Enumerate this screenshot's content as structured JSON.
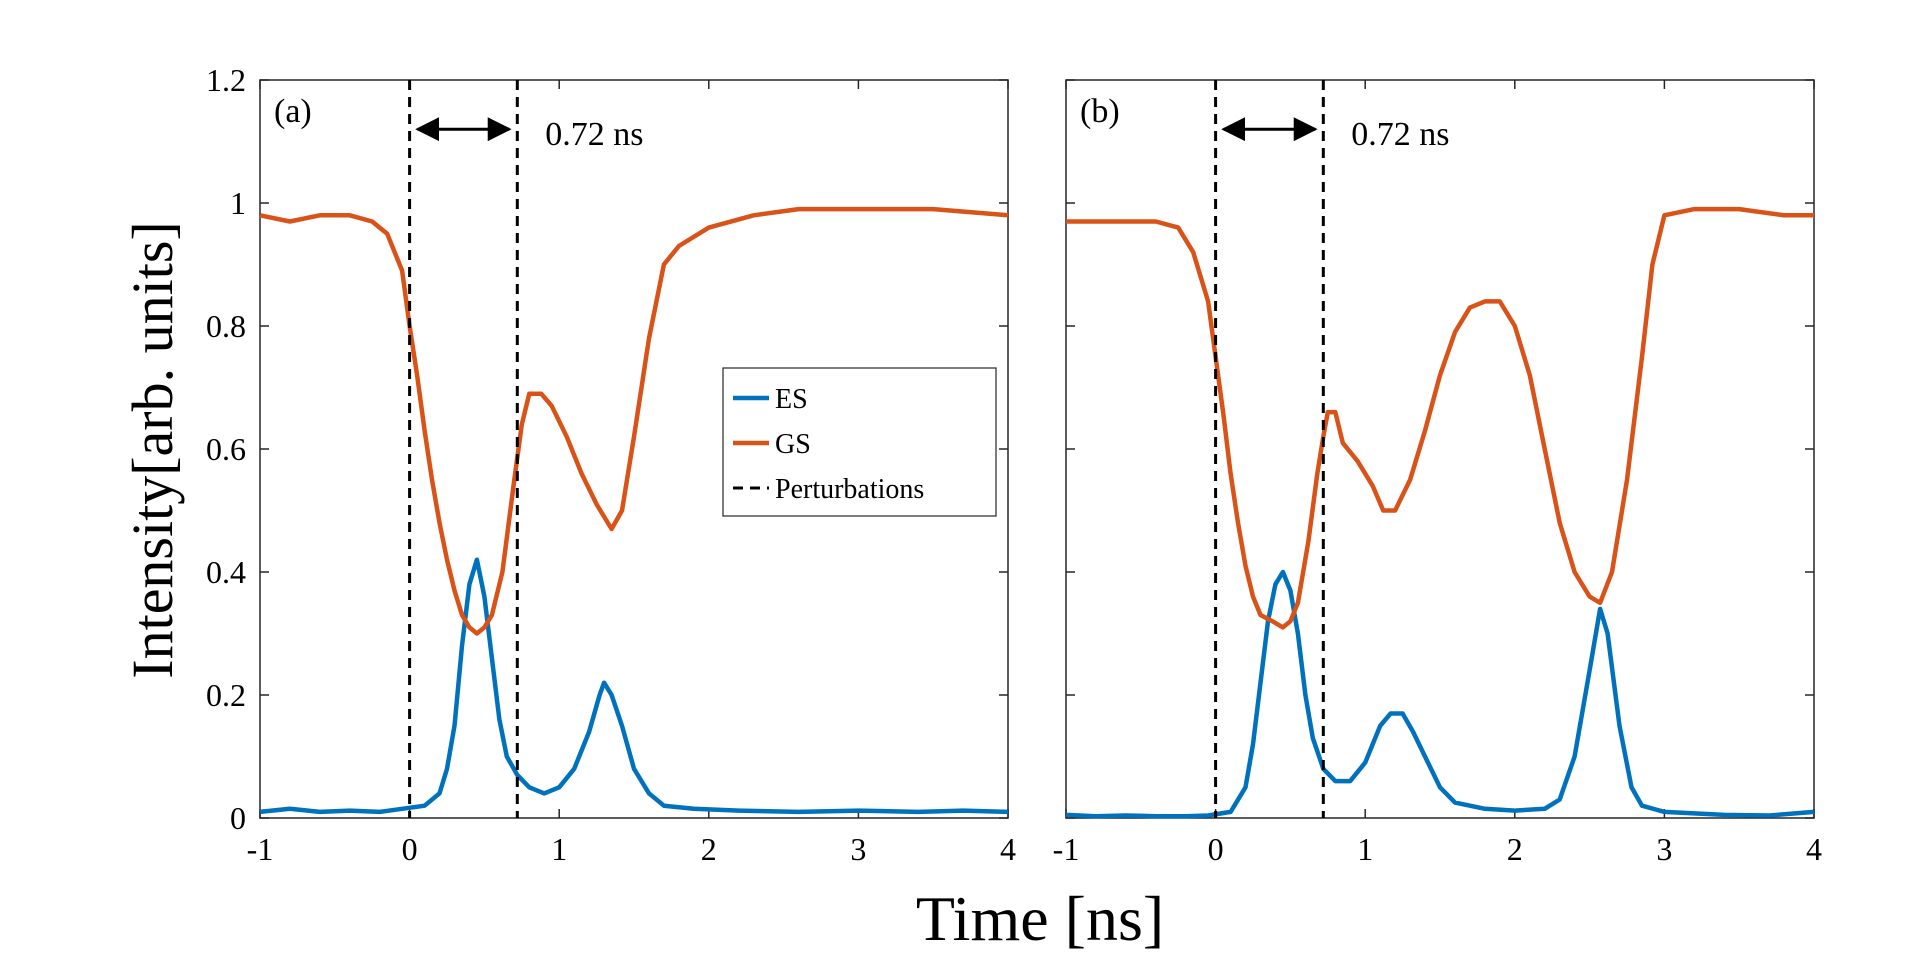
{
  "chart_data": [
    {
      "type": "line",
      "panel_label": "(a)",
      "xlabel": "Time [ns]",
      "ylabel": "Intensity[arb. units]",
      "xlim": [
        -1,
        4
      ],
      "ylim": [
        0,
        1.2
      ],
      "xticks": [
        -1,
        0,
        1,
        2,
        3,
        4
      ],
      "yticks": [
        0,
        0.2,
        0.4,
        0.6,
        0.8,
        1,
        1.2
      ],
      "ytick_labels": [
        "0",
        "0.2",
        "0.4",
        "0.6",
        "0.8",
        "1",
        "1.2"
      ],
      "xtick_labels": [
        "-1",
        "0",
        "1",
        "2",
        "3",
        "4"
      ],
      "perturbations": [
        0,
        0.72
      ],
      "annotation": "0.72 ns",
      "legend": [
        "ES",
        "GS",
        "Perturbations"
      ],
      "series": [
        {
          "name": "ES",
          "color": "#0072BD",
          "points": [
            [
              -1,
              0.01
            ],
            [
              -0.8,
              0.015
            ],
            [
              -0.6,
              0.01
            ],
            [
              -0.4,
              0.012
            ],
            [
              -0.2,
              0.01
            ],
            [
              -0.05,
              0.015
            ],
            [
              0.1,
              0.02
            ],
            [
              0.2,
              0.04
            ],
            [
              0.25,
              0.08
            ],
            [
              0.3,
              0.15
            ],
            [
              0.35,
              0.28
            ],
            [
              0.4,
              0.38
            ],
            [
              0.45,
              0.42
            ],
            [
              0.5,
              0.36
            ],
            [
              0.55,
              0.26
            ],
            [
              0.6,
              0.16
            ],
            [
              0.65,
              0.1
            ],
            [
              0.72,
              0.07
            ],
            [
              0.8,
              0.05
            ],
            [
              0.9,
              0.04
            ],
            [
              1.0,
              0.05
            ],
            [
              1.1,
              0.08
            ],
            [
              1.2,
              0.14
            ],
            [
              1.27,
              0.2
            ],
            [
              1.3,
              0.22
            ],
            [
              1.35,
              0.2
            ],
            [
              1.42,
              0.15
            ],
            [
              1.5,
              0.08
            ],
            [
              1.6,
              0.04
            ],
            [
              1.7,
              0.02
            ],
            [
              1.9,
              0.015
            ],
            [
              2.2,
              0.012
            ],
            [
              2.6,
              0.01
            ],
            [
              3.0,
              0.012
            ],
            [
              3.4,
              0.01
            ],
            [
              3.7,
              0.012
            ],
            [
              4.0,
              0.01
            ]
          ]
        },
        {
          "name": "GS",
          "color": "#D95319",
          "points": [
            [
              -1,
              0.98
            ],
            [
              -0.8,
              0.97
            ],
            [
              -0.6,
              0.98
            ],
            [
              -0.4,
              0.98
            ],
            [
              -0.25,
              0.97
            ],
            [
              -0.15,
              0.95
            ],
            [
              -0.05,
              0.89
            ],
            [
              0.0,
              0.8
            ],
            [
              0.05,
              0.72
            ],
            [
              0.1,
              0.63
            ],
            [
              0.15,
              0.55
            ],
            [
              0.2,
              0.48
            ],
            [
              0.25,
              0.42
            ],
            [
              0.3,
              0.37
            ],
            [
              0.35,
              0.33
            ],
            [
              0.4,
              0.31
            ],
            [
              0.45,
              0.3
            ],
            [
              0.5,
              0.31
            ],
            [
              0.55,
              0.33
            ],
            [
              0.62,
              0.4
            ],
            [
              0.7,
              0.55
            ],
            [
              0.75,
              0.64
            ],
            [
              0.8,
              0.69
            ],
            [
              0.88,
              0.69
            ],
            [
              0.95,
              0.67
            ],
            [
              1.05,
              0.62
            ],
            [
              1.15,
              0.56
            ],
            [
              1.25,
              0.51
            ],
            [
              1.35,
              0.47
            ],
            [
              1.42,
              0.5
            ],
            [
              1.5,
              0.62
            ],
            [
              1.6,
              0.78
            ],
            [
              1.7,
              0.9
            ],
            [
              1.8,
              0.93
            ],
            [
              2.0,
              0.96
            ],
            [
              2.3,
              0.98
            ],
            [
              2.6,
              0.99
            ],
            [
              3.0,
              0.99
            ],
            [
              3.5,
              0.99
            ],
            [
              4.0,
              0.98
            ]
          ]
        }
      ]
    },
    {
      "type": "line",
      "panel_label": "(b)",
      "xlabel": "Time [ns]",
      "ylabel": "",
      "xlim": [
        -1,
        4
      ],
      "ylim": [
        0,
        1.2
      ],
      "xticks": [
        -1,
        0,
        1,
        2,
        3,
        4
      ],
      "yticks": [
        0,
        0.2,
        0.4,
        0.6,
        0.8,
        1,
        1.2
      ],
      "xtick_labels": [
        "-1",
        "0",
        "1",
        "2",
        "3",
        "4"
      ],
      "perturbations": [
        0,
        0.72
      ],
      "annotation": "0.72 ns",
      "series": [
        {
          "name": "ES",
          "color": "#0072BD",
          "points": [
            [
              -1,
              0.005
            ],
            [
              -0.8,
              0.003
            ],
            [
              -0.6,
              0.004
            ],
            [
              -0.4,
              0.003
            ],
            [
              -0.2,
              0.003
            ],
            [
              -0.05,
              0.004
            ],
            [
              0.1,
              0.01
            ],
            [
              0.2,
              0.05
            ],
            [
              0.25,
              0.12
            ],
            [
              0.3,
              0.22
            ],
            [
              0.35,
              0.32
            ],
            [
              0.4,
              0.38
            ],
            [
              0.45,
              0.4
            ],
            [
              0.5,
              0.37
            ],
            [
              0.55,
              0.3
            ],
            [
              0.6,
              0.2
            ],
            [
              0.65,
              0.13
            ],
            [
              0.72,
              0.08
            ],
            [
              0.8,
              0.06
            ],
            [
              0.9,
              0.06
            ],
            [
              1.0,
              0.09
            ],
            [
              1.1,
              0.15
            ],
            [
              1.17,
              0.17
            ],
            [
              1.25,
              0.17
            ],
            [
              1.32,
              0.14
            ],
            [
              1.4,
              0.1
            ],
            [
              1.5,
              0.05
            ],
            [
              1.6,
              0.025
            ],
            [
              1.8,
              0.015
            ],
            [
              2.0,
              0.012
            ],
            [
              2.2,
              0.015
            ],
            [
              2.3,
              0.03
            ],
            [
              2.4,
              0.1
            ],
            [
              2.5,
              0.24
            ],
            [
              2.57,
              0.34
            ],
            [
              2.62,
              0.3
            ],
            [
              2.7,
              0.15
            ],
            [
              2.78,
              0.05
            ],
            [
              2.85,
              0.02
            ],
            [
              3.0,
              0.01
            ],
            [
              3.4,
              0.005
            ],
            [
              3.7,
              0.004
            ],
            [
              4.0,
              0.01
            ]
          ]
        },
        {
          "name": "GS",
          "color": "#D95319",
          "points": [
            [
              -1,
              0.97
            ],
            [
              -0.8,
              0.97
            ],
            [
              -0.6,
              0.97
            ],
            [
              -0.4,
              0.97
            ],
            [
              -0.25,
              0.96
            ],
            [
              -0.15,
              0.92
            ],
            [
              -0.05,
              0.84
            ],
            [
              0.0,
              0.75
            ],
            [
              0.05,
              0.66
            ],
            [
              0.1,
              0.56
            ],
            [
              0.15,
              0.48
            ],
            [
              0.2,
              0.41
            ],
            [
              0.25,
              0.36
            ],
            [
              0.3,
              0.33
            ],
            [
              0.38,
              0.32
            ],
            [
              0.45,
              0.31
            ],
            [
              0.5,
              0.32
            ],
            [
              0.55,
              0.35
            ],
            [
              0.62,
              0.45
            ],
            [
              0.68,
              0.56
            ],
            [
              0.72,
              0.62
            ],
            [
              0.75,
              0.66
            ],
            [
              0.8,
              0.66
            ],
            [
              0.85,
              0.61
            ],
            [
              0.95,
              0.58
            ],
            [
              1.05,
              0.54
            ],
            [
              1.12,
              0.5
            ],
            [
              1.2,
              0.5
            ],
            [
              1.3,
              0.55
            ],
            [
              1.4,
              0.63
            ],
            [
              1.5,
              0.72
            ],
            [
              1.6,
              0.79
            ],
            [
              1.7,
              0.83
            ],
            [
              1.8,
              0.84
            ],
            [
              1.9,
              0.84
            ],
            [
              2.0,
              0.8
            ],
            [
              2.1,
              0.72
            ],
            [
              2.2,
              0.6
            ],
            [
              2.3,
              0.48
            ],
            [
              2.4,
              0.4
            ],
            [
              2.5,
              0.36
            ],
            [
              2.57,
              0.35
            ],
            [
              2.65,
              0.4
            ],
            [
              2.75,
              0.55
            ],
            [
              2.85,
              0.75
            ],
            [
              2.92,
              0.9
            ],
            [
              3.0,
              0.98
            ],
            [
              3.2,
              0.99
            ],
            [
              3.5,
              0.99
            ],
            [
              3.8,
              0.98
            ],
            [
              4.0,
              0.98
            ]
          ]
        }
      ]
    }
  ]
}
